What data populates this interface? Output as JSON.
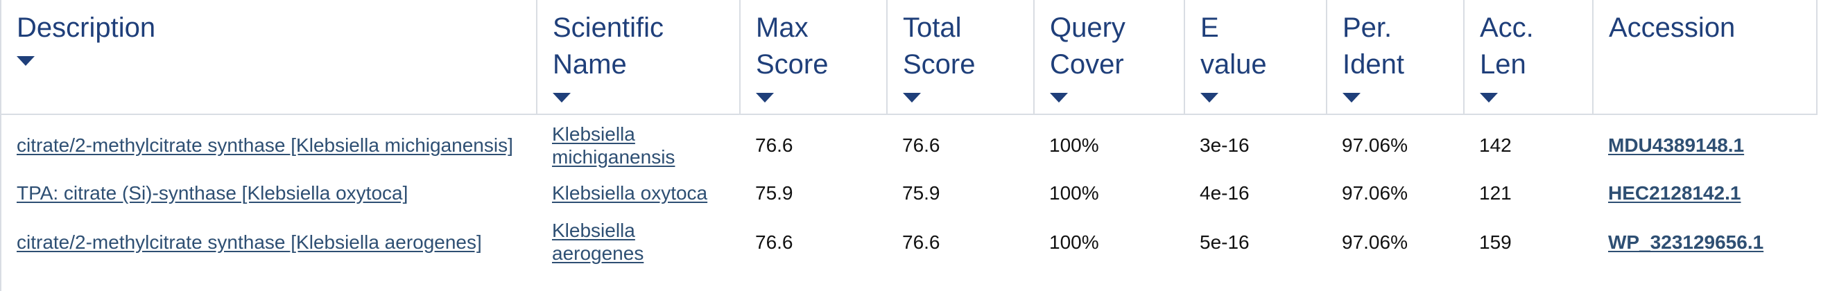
{
  "headers": [
    {
      "label": "Description"
    },
    {
      "label": "Scientific\nName"
    },
    {
      "label": "Max\nScore"
    },
    {
      "label": "Total\nScore"
    },
    {
      "label": "Query\nCover"
    },
    {
      "label": "E\nvalue"
    },
    {
      "label": "Per.\nIdent"
    },
    {
      "label": "Acc.\nLen"
    },
    {
      "label": "Accession"
    }
  ],
  "rows": [
    {
      "description": "citrate/2-methylcitrate synthase [Klebsiella michiganensis]",
      "scientific_name": "Klebsiella michiganensis",
      "max_score": "76.6",
      "total_score": "76.6",
      "query_cover": "100%",
      "e_value": "3e-16",
      "per_ident": "97.06%",
      "acc_len": "142",
      "accession": "MDU4389148.1"
    },
    {
      "description": "TPA: citrate (Si)-synthase [Klebsiella oxytoca]",
      "scientific_name": "Klebsiella oxytoca",
      "max_score": "75.9",
      "total_score": "75.9",
      "query_cover": "100%",
      "e_value": "4e-16",
      "per_ident": "97.06%",
      "acc_len": "121",
      "accession": "HEC2128142.1"
    },
    {
      "description": "citrate/2-methylcitrate synthase [Klebsiella aerogenes]",
      "scientific_name": "Klebsiella aerogenes",
      "max_score": "76.6",
      "total_score": "76.6",
      "query_cover": "100%",
      "e_value": "5e-16",
      "per_ident": "97.06%",
      "acc_len": "159",
      "accession": "WP_323129656.1"
    }
  ],
  "colors": {
    "header_text": "#1f3f7a",
    "link": "#2e4f73",
    "border": "#d9dde3"
  },
  "icons": {
    "sort": "caret-down-icon"
  }
}
